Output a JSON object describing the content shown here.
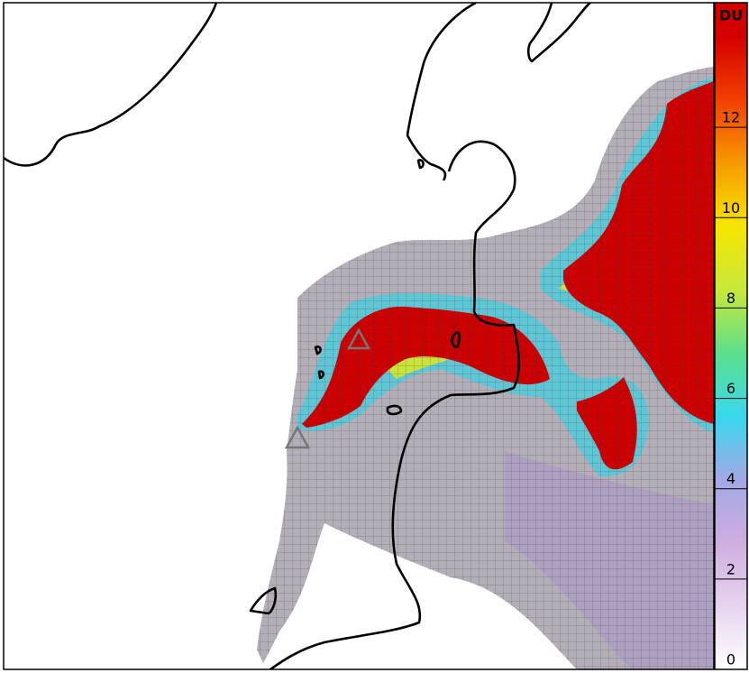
{
  "colorbar": {
    "label": "DU",
    "lim": [
      0,
      14
    ],
    "ticks": [
      0,
      2,
      4,
      6,
      8,
      10,
      12
    ],
    "colors": [
      "#ffffff",
      "#e6d4ee",
      "#cfaee0",
      "#a3a8e4",
      "#38d8f0",
      "#5ce08a",
      "#c8e83a",
      "#f7e600",
      "#f79a00",
      "#f24000",
      "#d40000"
    ]
  }
}
